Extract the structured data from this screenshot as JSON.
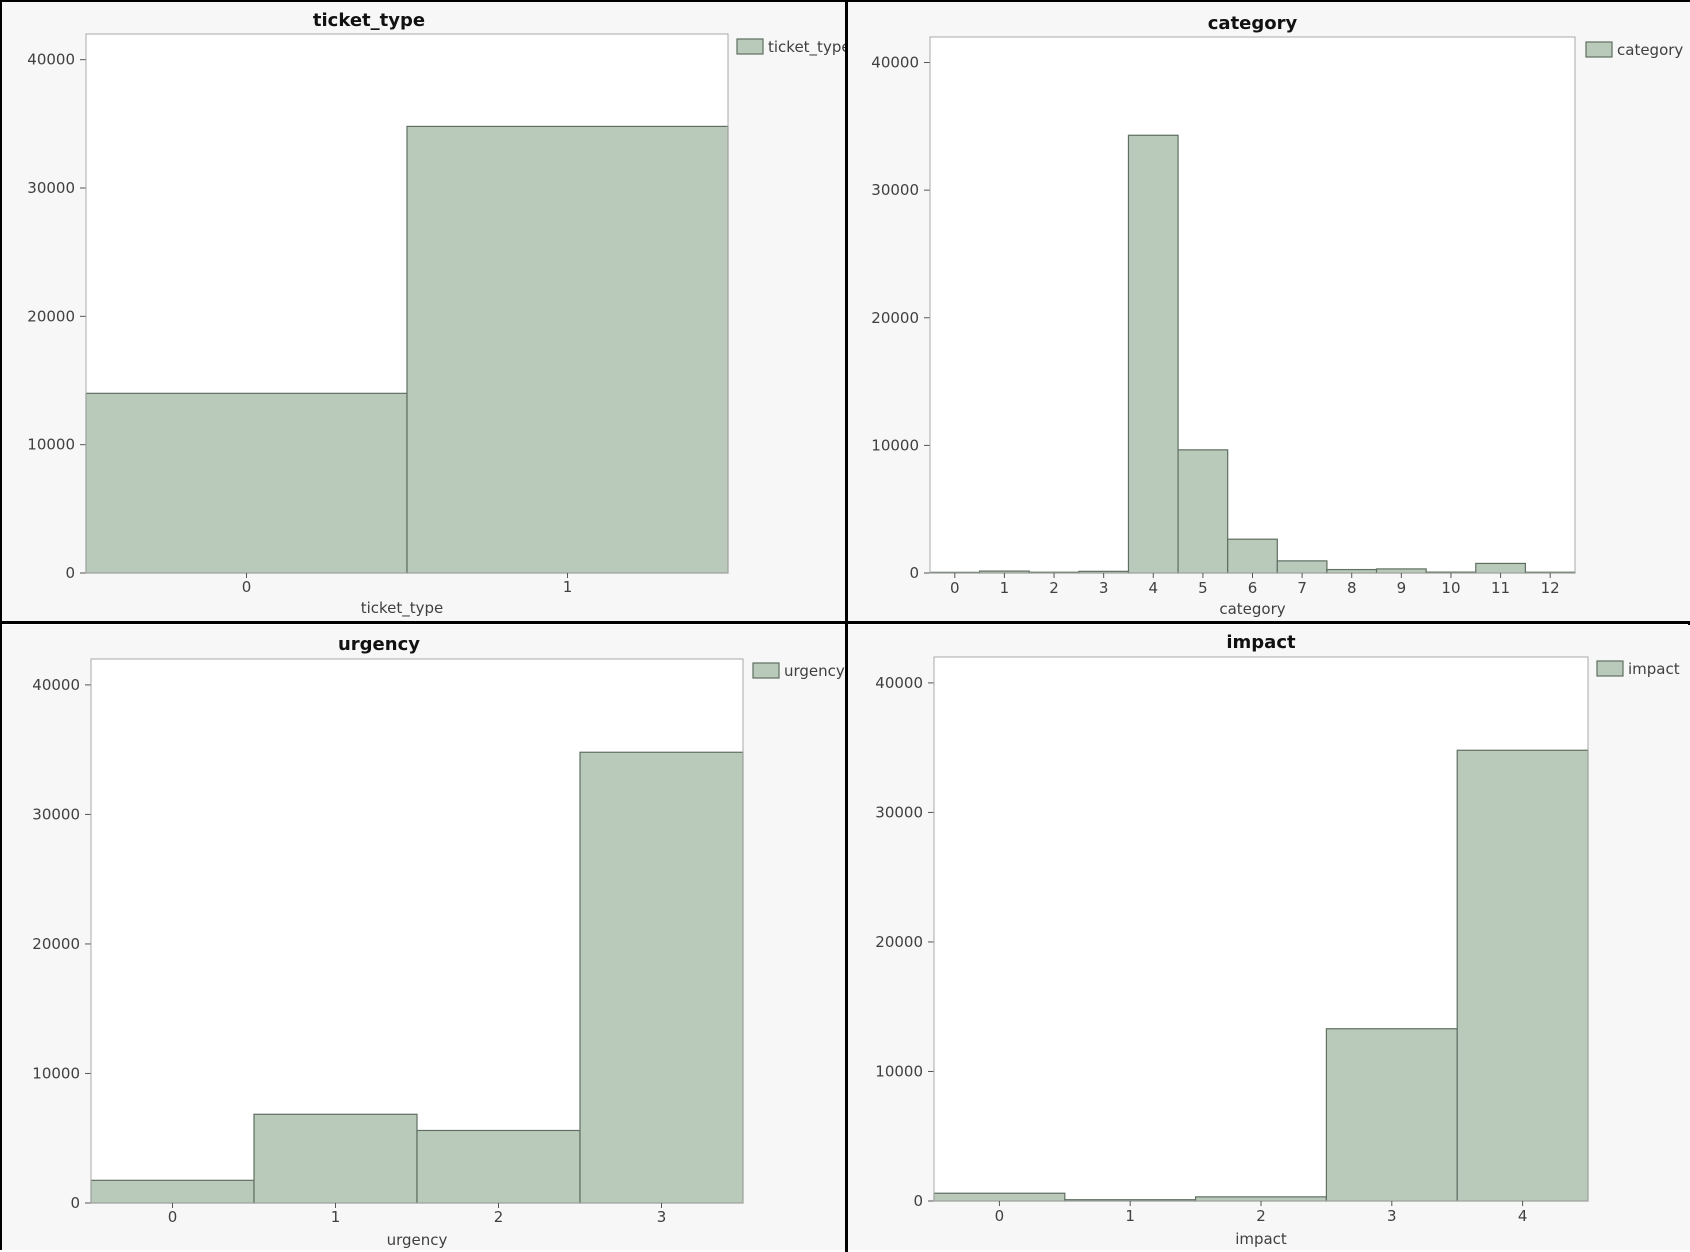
{
  "colors": {
    "bar_fill": "#b9cabb",
    "bar_stroke": "#5f6f61",
    "panel_bg": "#f7f7f7",
    "plot_bg": "#ffffff",
    "frame": "#a9a9a9",
    "text": "#404040"
  },
  "chart_data": [
    {
      "type": "bar",
      "title": "ticket_type",
      "xlabel": "ticket_type",
      "ylabel": "",
      "categories": [
        "0",
        "1"
      ],
      "values": [
        14000,
        34800
      ],
      "ylim": [
        0,
        42000
      ],
      "yticks": [
        "0",
        "10000",
        "20000",
        "30000",
        "40000"
      ],
      "legend": {
        "label": "ticket_type",
        "position": "top-right"
      },
      "grid": false
    },
    {
      "type": "bar",
      "title": "category",
      "xlabel": "category",
      "ylabel": "",
      "categories": [
        "0",
        "1",
        "2",
        "3",
        "4",
        "5",
        "6",
        "7",
        "8",
        "9",
        "10",
        "11",
        "12"
      ],
      "values": [
        50,
        150,
        60,
        130,
        34300,
        9650,
        2650,
        950,
        270,
        320,
        70,
        750,
        60
      ],
      "ylim": [
        0,
        42000
      ],
      "yticks": [
        "0",
        "10000",
        "20000",
        "30000",
        "40000"
      ],
      "legend": {
        "label": "category",
        "position": "top-right"
      },
      "grid": false
    },
    {
      "type": "bar",
      "title": "urgency",
      "xlabel": "urgency",
      "ylabel": "",
      "categories": [
        "0",
        "1",
        "2",
        "3"
      ],
      "values": [
        1750,
        6850,
        5600,
        34800
      ],
      "ylim": [
        0,
        42000
      ],
      "yticks": [
        "0",
        "10000",
        "20000",
        "30000",
        "40000"
      ],
      "legend": {
        "label": "urgency",
        "position": "top-right"
      },
      "grid": false
    },
    {
      "type": "bar",
      "title": "impact",
      "xlabel": "impact",
      "ylabel": "",
      "categories": [
        "0",
        "1",
        "2",
        "3",
        "4"
      ],
      "values": [
        600,
        100,
        320,
        13300,
        34800
      ],
      "ylim": [
        0,
        42000
      ],
      "yticks": [
        "0",
        "10000",
        "20000",
        "30000",
        "40000"
      ],
      "legend": {
        "label": "impact",
        "position": "top-right"
      },
      "grid": false
    }
  ]
}
